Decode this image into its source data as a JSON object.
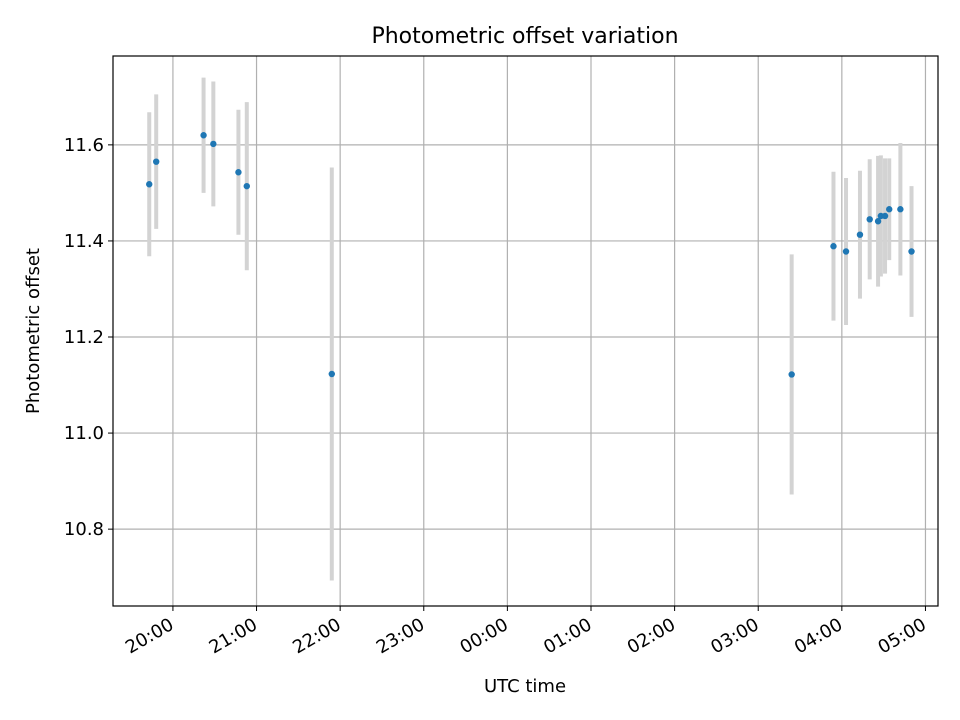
{
  "chart_data": {
    "type": "scatter",
    "title": "Photometric offset variation",
    "xlabel": "UTC time",
    "ylabel": "Photometric offset",
    "grid": true,
    "x_ticks": [
      "20:00",
      "21:00",
      "22:00",
      "23:00",
      "00:00",
      "01:00",
      "02:00",
      "03:00",
      "04:00",
      "05:00"
    ],
    "y_ticks": [
      "10.8",
      "11.0",
      "11.2",
      "11.4",
      "11.6"
    ],
    "x_range_hours_utc": [
      "19:17",
      "05:09"
    ],
    "ylim": [
      10.64,
      11.785
    ],
    "point_color": "#1f77b4",
    "errorbar_color": "#d3d3d3",
    "points": [
      {
        "x": "19:43",
        "y": 11.518,
        "err": 0.15
      },
      {
        "x": "19:48",
        "y": 11.565,
        "err": 0.14
      },
      {
        "x": "20:22",
        "y": 11.62,
        "err": 0.12
      },
      {
        "x": "20:29",
        "y": 11.602,
        "err": 0.13
      },
      {
        "x": "20:47",
        "y": 11.543,
        "err": 0.13
      },
      {
        "x": "20:53",
        "y": 11.514,
        "err": 0.175
      },
      {
        "x": "21:54",
        "y": 11.123,
        "err": 0.43
      },
      {
        "x": "03:24",
        "y": 11.122,
        "err": 0.25
      },
      {
        "x": "03:54",
        "y": 11.389,
        "err": 0.155
      },
      {
        "x": "04:03",
        "y": 11.378,
        "err": 0.153
      },
      {
        "x": "04:13",
        "y": 11.413,
        "err": 0.133
      },
      {
        "x": "04:20",
        "y": 11.445,
        "err": 0.125
      },
      {
        "x": "04:26",
        "y": 11.441,
        "err": 0.136
      },
      {
        "x": "04:28",
        "y": 11.452,
        "err": 0.126
      },
      {
        "x": "04:31",
        "y": 11.452,
        "err": 0.12
      },
      {
        "x": "04:34",
        "y": 11.466,
        "err": 0.106
      },
      {
        "x": "04:42",
        "y": 11.466,
        "err": 0.138
      },
      {
        "x": "04:50",
        "y": 11.378,
        "err": 0.136
      }
    ]
  }
}
